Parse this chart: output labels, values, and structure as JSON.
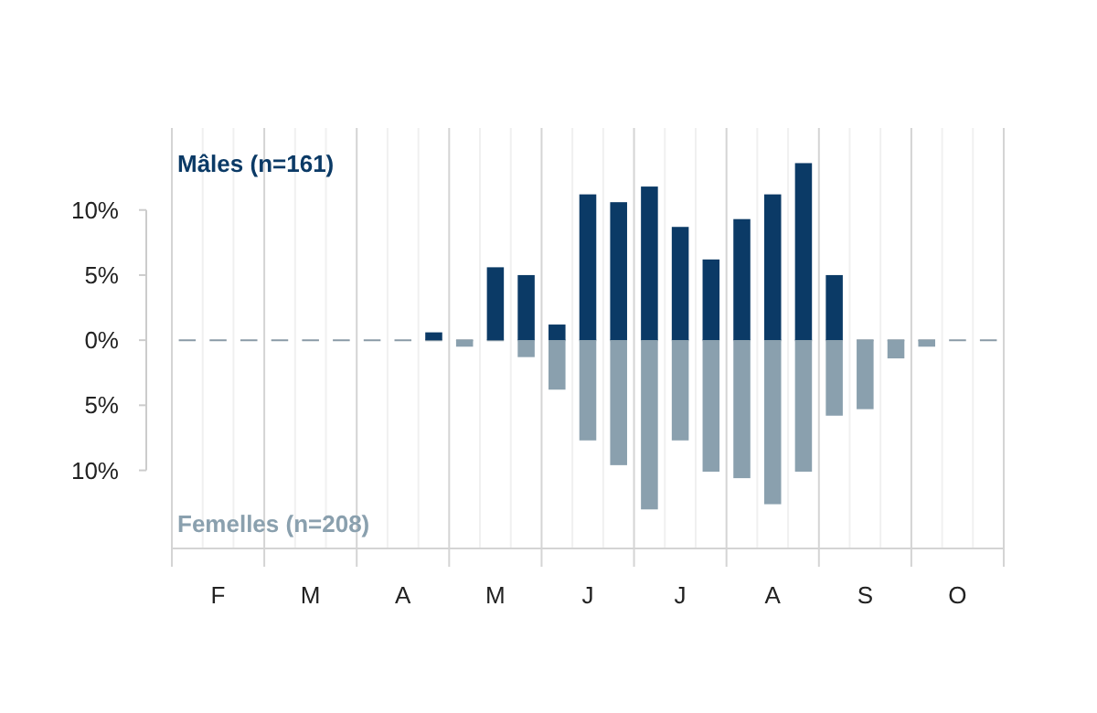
{
  "chart_data": {
    "type": "bar",
    "stacked": true,
    "categories": [
      null,
      "F",
      null,
      null,
      "M",
      null,
      null,
      "A",
      null,
      null,
      "M",
      null,
      null,
      "J",
      null,
      null,
      "J",
      null,
      null,
      "A",
      null,
      null,
      "S",
      null,
      null,
      "O",
      null
    ],
    "series": [
      {
        "name": "Mâles (n=161)",
        "color": "#0b3a66",
        "values": [
          0,
          0,
          0,
          0,
          0,
          0,
          0,
          0,
          0.6,
          0,
          5.6,
          5.0,
          1.2,
          11.2,
          10.6,
          11.8,
          8.7,
          6.2,
          9.3,
          11.2,
          13.6,
          5.0,
          0,
          0,
          0,
          0,
          0
        ]
      },
      {
        "name": "Femelles (n=208)",
        "color": "#8aa0ae",
        "values": [
          0,
          0,
          0,
          0,
          0,
          0,
          0,
          0,
          0,
          -0.5,
          0,
          -1.3,
          -3.8,
          -7.7,
          -9.6,
          -13.0,
          -7.7,
          -10.1,
          -10.6,
          -12.6,
          -10.1,
          -5.8,
          -5.3,
          -1.4,
          -0.5,
          0,
          0
        ]
      }
    ],
    "ylim": [
      -16,
      16.3
    ],
    "yticks": [
      {
        "value": -10,
        "label": "10%"
      },
      {
        "value": -5,
        "label": "5%"
      },
      {
        "value": 0,
        "label": "0%"
      },
      {
        "value": 5,
        "label": "5%"
      },
      {
        "value": 10,
        "label": "10%"
      }
    ],
    "ref_lines": [
      {
        "axis": "y",
        "value": 0,
        "color": "#8a9aa6",
        "line_style": "dashed"
      }
    ],
    "grid": "x"
  }
}
